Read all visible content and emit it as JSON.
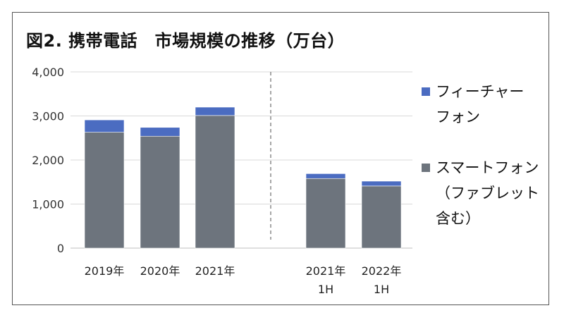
{
  "chart_data": {
    "type": "bar",
    "stacked": true,
    "title": "図2. 携帯電話　市場規模の推移（万台）",
    "categories": [
      "2019年",
      "2020年",
      "2021年",
      "2021年\n1H",
      "2022年\n1H"
    ],
    "groups": [
      [
        "2019年",
        "2020年",
        "2021年"
      ],
      [
        "2021年\n1H",
        "2022年\n1H"
      ]
    ],
    "series": [
      {
        "name": "スマートフォン（ファブレット含む）",
        "values": [
          2630,
          2540,
          3010,
          1580,
          1410
        ],
        "color": "#6d747d"
      },
      {
        "name": "フィーチャーフォン",
        "values": [
          280,
          200,
          190,
          110,
          110
        ],
        "color": "#4b6cc1"
      }
    ],
    "ylim": [
      0,
      4000
    ],
    "yticks": [
      "0",
      "1,000",
      "2,000",
      "3,000",
      "4,000"
    ],
    "ytick_values": [
      0,
      1000,
      2000,
      3000,
      4000
    ],
    "grid": true,
    "divider": "dashed line between annual and half-year groups",
    "legend_position": "right"
  },
  "legend": {
    "items": [
      {
        "label_lines": [
          "フィーチャー",
          "フォン"
        ],
        "color": "#4b6cc1"
      },
      {
        "label_lines": [
          "スマートフォン",
          "（ファブレット",
          "含む）"
        ],
        "color": "#6d747d"
      }
    ]
  }
}
